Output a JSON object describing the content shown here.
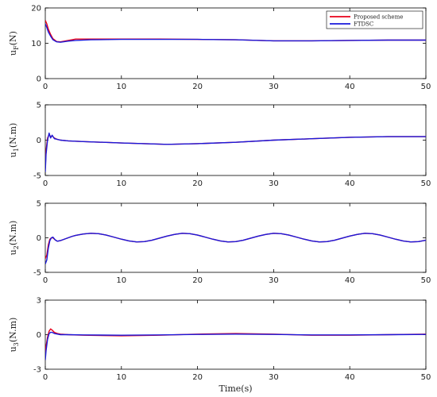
{
  "chart_data": [
    {
      "type": "line",
      "ylabel": "u",
      "ylabel_sub": "F",
      "ylabel_unit": "(N)",
      "xlim": [
        0,
        50
      ],
      "ylim": [
        0,
        20
      ],
      "xticks": [
        "0",
        "10",
        "20",
        "30",
        "40",
        "50"
      ],
      "yticks": [
        "0",
        "10",
        "20"
      ],
      "legend": {
        "placement": "top-right"
      },
      "series": [
        {
          "name": "Proposed scheme",
          "color": "#e8001a",
          "x": [
            0,
            0.2,
            0.4,
            0.7,
            1.0,
            1.5,
            2,
            3,
            3.5,
            4,
            6,
            10,
            15,
            20,
            25,
            30,
            35,
            40,
            45,
            50
          ],
          "y": [
            16.5,
            15.5,
            14.0,
            12.5,
            11.3,
            10.5,
            10.4,
            10.8,
            11.0,
            11.2,
            11.2,
            11.2,
            11.2,
            11.1,
            11.0,
            10.7,
            10.7,
            10.8,
            10.9,
            10.9
          ]
        },
        {
          "name": "FTDSC",
          "color": "#1a1adb",
          "x": [
            0,
            0.2,
            0.4,
            0.7,
            1.0,
            1.5,
            2,
            3,
            4,
            6,
            10,
            15,
            20,
            25,
            30,
            35,
            40,
            45,
            50
          ],
          "y": [
            15.5,
            14.5,
            13.2,
            12.0,
            11.0,
            10.4,
            10.3,
            10.6,
            10.8,
            11.0,
            11.1,
            11.1,
            11.1,
            11.0,
            10.7,
            10.7,
            10.8,
            10.9,
            10.9
          ]
        }
      ]
    },
    {
      "type": "line",
      "ylabel": "u",
      "ylabel_sub": "1",
      "ylabel_unit": "(N.m)",
      "xlim": [
        0,
        50
      ],
      "ylim": [
        -5,
        5
      ],
      "xticks": [
        "0",
        "10",
        "20",
        "30",
        "40",
        "50"
      ],
      "yticks": [
        "-5",
        "0",
        "5"
      ],
      "series": [
        {
          "color": "#e8001a",
          "x": [
            0,
            0.1,
            0.3,
            0.5,
            0.7,
            0.9,
            1.2,
            1.6,
            2,
            3,
            5,
            10,
            16,
            20,
            25,
            30,
            35,
            40,
            45,
            50
          ],
          "y": [
            -4.0,
            -1.5,
            0.3,
            0.8,
            0.5,
            0.6,
            0.3,
            0.1,
            0.0,
            -0.1,
            -0.2,
            -0.4,
            -0.6,
            -0.5,
            -0.3,
            0.0,
            0.2,
            0.4,
            0.5,
            0.5
          ]
        },
        {
          "color": "#1a1adb",
          "x": [
            0,
            0.1,
            0.3,
            0.5,
            0.7,
            0.9,
            1.2,
            1.6,
            2,
            3,
            5,
            10,
            16,
            20,
            25,
            30,
            35,
            40,
            45,
            50
          ],
          "y": [
            -4.5,
            -2.0,
            0.0,
            1.0,
            0.3,
            0.7,
            0.2,
            0.1,
            0.0,
            -0.1,
            -0.2,
            -0.4,
            -0.6,
            -0.5,
            -0.3,
            0.0,
            0.2,
            0.4,
            0.5,
            0.5
          ]
        }
      ]
    },
    {
      "type": "line",
      "ylabel": "u",
      "ylabel_sub": "2",
      "ylabel_unit": "(N.m)",
      "xlim": [
        0,
        50
      ],
      "ylim": [
        -5,
        5
      ],
      "xticks": [
        "0",
        "10",
        "20",
        "30",
        "40",
        "50"
      ],
      "yticks": [
        "-5",
        "0",
        "5"
      ],
      "series": [
        {
          "color": "#e8001a",
          "x": [
            0,
            0.2,
            0.4,
            0.6,
            0.8,
            1.0,
            1.3,
            1.6,
            2.0,
            2.5,
            3.0,
            3.5,
            4,
            5,
            6,
            7,
            8,
            9,
            10,
            11,
            12,
            13,
            14,
            15,
            16,
            17,
            18,
            19,
            20,
            21,
            22,
            23,
            24,
            25,
            26,
            27,
            28,
            29,
            30,
            31,
            32,
            33,
            34,
            35,
            36,
            37,
            38,
            39,
            40,
            41,
            42,
            43,
            44,
            45,
            46,
            47,
            48,
            49,
            50
          ],
          "y": [
            -3.0,
            -2.5,
            -1.0,
            -0.2,
            0.0,
            0.0,
            -0.3,
            -0.5,
            -0.4,
            -0.2,
            0.0,
            0.2,
            0.35,
            0.55,
            0.65,
            0.6,
            0.4,
            0.1,
            -0.2,
            -0.45,
            -0.6,
            -0.55,
            -0.35,
            -0.05,
            0.25,
            0.5,
            0.65,
            0.6,
            0.4,
            0.1,
            -0.2,
            -0.45,
            -0.6,
            -0.55,
            -0.35,
            -0.05,
            0.25,
            0.5,
            0.65,
            0.6,
            0.4,
            0.1,
            -0.2,
            -0.45,
            -0.6,
            -0.55,
            -0.35,
            -0.05,
            0.25,
            0.5,
            0.65,
            0.6,
            0.4,
            0.1,
            -0.2,
            -0.45,
            -0.6,
            -0.55,
            -0.35
          ]
        },
        {
          "color": "#1a1adb",
          "x": [
            0,
            0.2,
            0.4,
            0.6,
            0.8,
            1.0,
            1.3,
            1.6,
            2.0,
            2.5,
            3.0,
            3.5,
            4,
            5,
            6,
            7,
            8,
            9,
            10,
            11,
            12,
            13,
            14,
            15,
            16,
            17,
            18,
            19,
            20,
            21,
            22,
            23,
            24,
            25,
            26,
            27,
            28,
            29,
            30,
            31,
            32,
            33,
            34,
            35,
            36,
            37,
            38,
            39,
            40,
            41,
            42,
            43,
            44,
            45,
            46,
            47,
            48,
            49,
            50
          ],
          "y": [
            -3.8,
            -3.2,
            -1.5,
            -0.4,
            0.0,
            0.1,
            -0.3,
            -0.5,
            -0.4,
            -0.2,
            0.0,
            0.2,
            0.35,
            0.55,
            0.65,
            0.6,
            0.4,
            0.1,
            -0.2,
            -0.45,
            -0.6,
            -0.55,
            -0.35,
            -0.05,
            0.25,
            0.5,
            0.65,
            0.6,
            0.4,
            0.1,
            -0.2,
            -0.45,
            -0.6,
            -0.55,
            -0.35,
            -0.05,
            0.25,
            0.5,
            0.65,
            0.6,
            0.4,
            0.1,
            -0.2,
            -0.45,
            -0.6,
            -0.55,
            -0.35,
            -0.05,
            0.25,
            0.5,
            0.65,
            0.6,
            0.4,
            0.1,
            -0.2,
            -0.45,
            -0.6,
            -0.55,
            -0.35
          ]
        }
      ]
    },
    {
      "type": "line",
      "ylabel": "u",
      "ylabel_sub": "3",
      "ylabel_unit": "(N.m)",
      "xlabel": "Time(s)",
      "xlim": [
        0,
        50
      ],
      "ylim": [
        -3,
        3
      ],
      "xticks": [
        "0",
        "10",
        "20",
        "30",
        "40",
        "50"
      ],
      "yticks": [
        "-3",
        "0",
        "3"
      ],
      "series": [
        {
          "color": "#e8001a",
          "x": [
            0,
            0.1,
            0.3,
            0.5,
            0.7,
            0.9,
            1.2,
            1.6,
            2,
            3,
            5,
            10,
            15,
            20,
            25,
            30,
            35,
            40,
            45,
            50
          ],
          "y": [
            -1.6,
            -1.0,
            -0.2,
            0.3,
            0.5,
            0.4,
            0.2,
            0.1,
            0.05,
            0.0,
            -0.05,
            -0.1,
            -0.05,
            0.05,
            0.1,
            0.05,
            -0.05,
            -0.05,
            0.0,
            0.05
          ]
        },
        {
          "color": "#1a1adb",
          "x": [
            0,
            0.1,
            0.3,
            0.5,
            0.7,
            0.9,
            1.2,
            1.6,
            2,
            3,
            5,
            10,
            15,
            20,
            25,
            30,
            35,
            40,
            45,
            50
          ],
          "y": [
            -2.2,
            -1.4,
            -0.4,
            0.1,
            0.2,
            0.2,
            0.1,
            0.05,
            0.0,
            0.0,
            -0.02,
            -0.05,
            -0.02,
            0.02,
            0.05,
            0.02,
            -0.02,
            -0.02,
            0.0,
            0.02
          ]
        }
      ]
    }
  ]
}
